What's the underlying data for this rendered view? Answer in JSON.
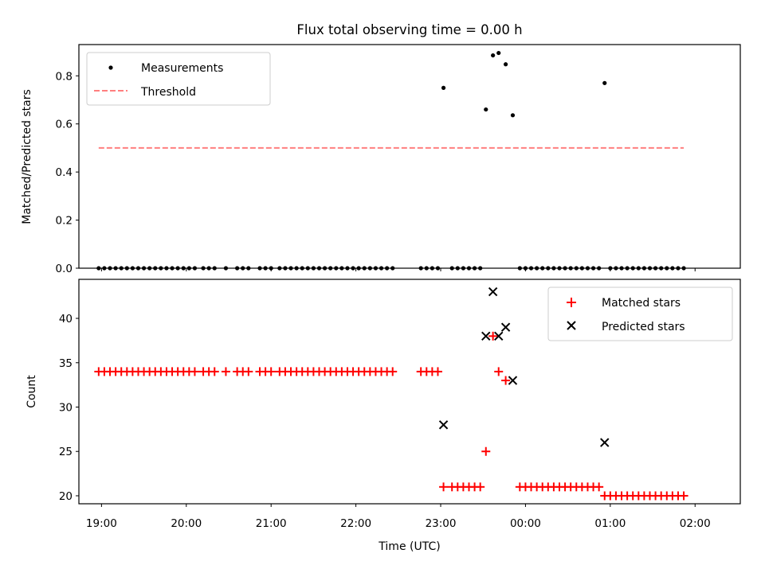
{
  "chart_data": [
    {
      "type": "scatter",
      "panel": "top",
      "title": "Flux total observing time = 0.00 h",
      "ylabel": "Matched/Predicted stars",
      "xlabel": "",
      "xlim": [
        "18:44",
        "02:32"
      ],
      "ylim": [
        0.0,
        0.93
      ],
      "yticks": [
        0.0,
        0.2,
        0.4,
        0.6,
        0.8
      ],
      "ytick_labels": [
        "0.0",
        "0.2",
        "0.4",
        "0.6",
        "0.8"
      ],
      "xticks": [
        "19:00",
        "20:00",
        "21:00",
        "22:00",
        "23:00",
        "00:00",
        "01:00",
        "02:00"
      ],
      "xtick_labels_visible": false,
      "legend_position": "top-left",
      "grid": false,
      "series": [
        {
          "name": "Measurements",
          "marker": "dot",
          "color": "#000000",
          "points": [
            [
              "18:58",
              0.0
            ],
            [
              "19:02",
              0.0
            ],
            [
              "19:06",
              0.0
            ],
            [
              "19:10",
              0.0
            ],
            [
              "19:14",
              0.0
            ],
            [
              "19:18",
              0.0
            ],
            [
              "19:22",
              0.0
            ],
            [
              "19:26",
              0.0
            ],
            [
              "19:30",
              0.0
            ],
            [
              "19:34",
              0.0
            ],
            [
              "19:38",
              0.0
            ],
            [
              "19:42",
              0.0
            ],
            [
              "19:46",
              0.0
            ],
            [
              "19:50",
              0.0
            ],
            [
              "19:54",
              0.0
            ],
            [
              "19:58",
              0.0
            ],
            [
              "20:02",
              0.0
            ],
            [
              "20:06",
              0.0
            ],
            [
              "20:12",
              0.0
            ],
            [
              "20:16",
              0.0
            ],
            [
              "20:20",
              0.0
            ],
            [
              "20:28",
              0.0
            ],
            [
              "20:36",
              0.0
            ],
            [
              "20:40",
              0.0
            ],
            [
              "20:44",
              0.0
            ],
            [
              "20:52",
              0.0
            ],
            [
              "20:56",
              0.0
            ],
            [
              "21:00",
              0.0
            ],
            [
              "21:06",
              0.0
            ],
            [
              "21:10",
              0.0
            ],
            [
              "21:14",
              0.0
            ],
            [
              "21:18",
              0.0
            ],
            [
              "21:22",
              0.0
            ],
            [
              "21:26",
              0.0
            ],
            [
              "21:30",
              0.0
            ],
            [
              "21:34",
              0.0
            ],
            [
              "21:38",
              0.0
            ],
            [
              "21:42",
              0.0
            ],
            [
              "21:46",
              0.0
            ],
            [
              "21:50",
              0.0
            ],
            [
              "21:54",
              0.0
            ],
            [
              "21:58",
              0.0
            ],
            [
              "22:02",
              0.0
            ],
            [
              "22:06",
              0.0
            ],
            [
              "22:10",
              0.0
            ],
            [
              "22:14",
              0.0
            ],
            [
              "22:18",
              0.0
            ],
            [
              "22:22",
              0.0
            ],
            [
              "22:26",
              0.0
            ],
            [
              "22:46",
              0.0
            ],
            [
              "22:50",
              0.0
            ],
            [
              "22:54",
              0.0
            ],
            [
              "22:58",
              0.0
            ],
            [
              "23:02",
              0.75
            ],
            [
              "23:08",
              0.0
            ],
            [
              "23:12",
              0.0
            ],
            [
              "23:16",
              0.0
            ],
            [
              "23:20",
              0.0
            ],
            [
              "23:24",
              0.0
            ],
            [
              "23:28",
              0.0
            ],
            [
              "23:32",
              0.66
            ],
            [
              "23:37",
              0.885
            ],
            [
              "23:41",
              0.895
            ],
            [
              "23:46",
              0.848
            ],
            [
              "23:51",
              0.636
            ],
            [
              "23:56",
              0.0
            ],
            [
              "00:00",
              0.0
            ],
            [
              "00:04",
              0.0
            ],
            [
              "00:08",
              0.0
            ],
            [
              "00:12",
              0.0
            ],
            [
              "00:16",
              0.0
            ],
            [
              "00:20",
              0.0
            ],
            [
              "00:24",
              0.0
            ],
            [
              "00:28",
              0.0
            ],
            [
              "00:32",
              0.0
            ],
            [
              "00:36",
              0.0
            ],
            [
              "00:40",
              0.0
            ],
            [
              "00:44",
              0.0
            ],
            [
              "00:48",
              0.0
            ],
            [
              "00:52",
              0.0
            ],
            [
              "00:56",
              0.77
            ],
            [
              "01:00",
              0.0
            ],
            [
              "01:04",
              0.0
            ],
            [
              "01:08",
              0.0
            ],
            [
              "01:12",
              0.0
            ],
            [
              "01:16",
              0.0
            ],
            [
              "01:20",
              0.0
            ],
            [
              "01:24",
              0.0
            ],
            [
              "01:28",
              0.0
            ],
            [
              "01:32",
              0.0
            ],
            [
              "01:36",
              0.0
            ],
            [
              "01:40",
              0.0
            ],
            [
              "01:44",
              0.0
            ],
            [
              "01:48",
              0.0
            ],
            [
              "01:52",
              0.0
            ]
          ]
        },
        {
          "name": "Threshold",
          "marker": "dashed-line",
          "color": "#ff7f7f",
          "points": [
            [
              "18:58",
              0.5
            ],
            [
              "01:52",
              0.5
            ]
          ]
        }
      ]
    },
    {
      "type": "scatter",
      "panel": "bottom",
      "title": "",
      "ylabel": "Count",
      "xlabel": "Time (UTC)",
      "xlim": [
        "18:44",
        "02:32"
      ],
      "ylim": [
        19.1,
        44.4
      ],
      "yticks": [
        20,
        25,
        30,
        35,
        40
      ],
      "ytick_labels": [
        "20",
        "25",
        "30",
        "35",
        "40"
      ],
      "xticks": [
        "19:00",
        "20:00",
        "21:00",
        "22:00",
        "23:00",
        "00:00",
        "01:00",
        "02:00"
      ],
      "xtick_labels": [
        "19:00",
        "20:00",
        "21:00",
        "22:00",
        "23:00",
        "00:00",
        "01:00",
        "02:00"
      ],
      "legend_position": "top-right",
      "grid": false,
      "series": [
        {
          "name": "Matched stars",
          "marker": "plus",
          "color": "#ff0000",
          "points": [
            [
              "18:58",
              34
            ],
            [
              "19:02",
              34
            ],
            [
              "19:06",
              34
            ],
            [
              "19:10",
              34
            ],
            [
              "19:14",
              34
            ],
            [
              "19:18",
              34
            ],
            [
              "19:22",
              34
            ],
            [
              "19:26",
              34
            ],
            [
              "19:30",
              34
            ],
            [
              "19:34",
              34
            ],
            [
              "19:38",
              34
            ],
            [
              "19:42",
              34
            ],
            [
              "19:46",
              34
            ],
            [
              "19:50",
              34
            ],
            [
              "19:54",
              34
            ],
            [
              "19:58",
              34
            ],
            [
              "20:02",
              34
            ],
            [
              "20:06",
              34
            ],
            [
              "20:12",
              34
            ],
            [
              "20:16",
              34
            ],
            [
              "20:20",
              34
            ],
            [
              "20:28",
              34
            ],
            [
              "20:36",
              34
            ],
            [
              "20:40",
              34
            ],
            [
              "20:44",
              34
            ],
            [
              "20:52",
              34
            ],
            [
              "20:56",
              34
            ],
            [
              "21:00",
              34
            ],
            [
              "21:06",
              34
            ],
            [
              "21:10",
              34
            ],
            [
              "21:14",
              34
            ],
            [
              "21:18",
              34
            ],
            [
              "21:22",
              34
            ],
            [
              "21:26",
              34
            ],
            [
              "21:30",
              34
            ],
            [
              "21:34",
              34
            ],
            [
              "21:38",
              34
            ],
            [
              "21:42",
              34
            ],
            [
              "21:46",
              34
            ],
            [
              "21:50",
              34
            ],
            [
              "21:54",
              34
            ],
            [
              "21:58",
              34
            ],
            [
              "22:02",
              34
            ],
            [
              "22:06",
              34
            ],
            [
              "22:10",
              34
            ],
            [
              "22:14",
              34
            ],
            [
              "22:18",
              34
            ],
            [
              "22:22",
              34
            ],
            [
              "22:26",
              34
            ],
            [
              "22:46",
              34
            ],
            [
              "22:50",
              34
            ],
            [
              "22:54",
              34
            ],
            [
              "22:58",
              34
            ],
            [
              "23:02",
              21
            ],
            [
              "23:08",
              21
            ],
            [
              "23:12",
              21
            ],
            [
              "23:16",
              21
            ],
            [
              "23:20",
              21
            ],
            [
              "23:24",
              21
            ],
            [
              "23:28",
              21
            ],
            [
              "23:32",
              25
            ],
            [
              "23:37",
              38
            ],
            [
              "23:41",
              34
            ],
            [
              "23:46",
              33
            ],
            [
              "23:56",
              21
            ],
            [
              "00:00",
              21
            ],
            [
              "00:04",
              21
            ],
            [
              "00:08",
              21
            ],
            [
              "00:12",
              21
            ],
            [
              "00:16",
              21
            ],
            [
              "00:20",
              21
            ],
            [
              "00:24",
              21
            ],
            [
              "00:28",
              21
            ],
            [
              "00:32",
              21
            ],
            [
              "00:36",
              21
            ],
            [
              "00:40",
              21
            ],
            [
              "00:44",
              21
            ],
            [
              "00:48",
              21
            ],
            [
              "00:52",
              21
            ],
            [
              "00:56",
              20
            ],
            [
              "01:00",
              20
            ],
            [
              "01:04",
              20
            ],
            [
              "01:08",
              20
            ],
            [
              "01:12",
              20
            ],
            [
              "01:16",
              20
            ],
            [
              "01:20",
              20
            ],
            [
              "01:24",
              20
            ],
            [
              "01:28",
              20
            ],
            [
              "01:32",
              20
            ],
            [
              "01:36",
              20
            ],
            [
              "01:40",
              20
            ],
            [
              "01:44",
              20
            ],
            [
              "01:48",
              20
            ],
            [
              "01:52",
              20
            ]
          ]
        },
        {
          "name": "Predicted stars",
          "marker": "x",
          "color": "#000000",
          "points": [
            [
              "23:02",
              28
            ],
            [
              "23:32",
              38
            ],
            [
              "23:37",
              43
            ],
            [
              "23:41",
              38
            ],
            [
              "23:46",
              39
            ],
            [
              "23:51",
              33
            ],
            [
              "00:56",
              26
            ]
          ]
        }
      ]
    }
  ]
}
